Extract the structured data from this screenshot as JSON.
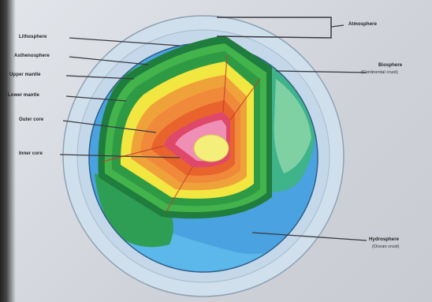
{
  "labels": {
    "left": [
      {
        "id": "lithosphere",
        "text": "Lithosphere"
      },
      {
        "id": "asthenosphere",
        "text": "Asthenosphere"
      },
      {
        "id": "upper-mantle",
        "text": "Upper mantle"
      },
      {
        "id": "lower-mantle",
        "text": "Lower mantle"
      },
      {
        "id": "outer-core",
        "text": "Outer core"
      },
      {
        "id": "inner-core",
        "text": "Inner core"
      }
    ],
    "right": [
      {
        "id": "atmosphere",
        "text": "Atmosphere",
        "sub": ""
      },
      {
        "id": "biosphere",
        "text": "Biosphere",
        "sub": "(Continental crust)"
      },
      {
        "id": "hydrosphere",
        "text": "Hydrosphere",
        "sub": "(Ocean crust)"
      }
    ]
  },
  "colors": {
    "atmosphere": "#b9d3e6",
    "ocean": "#4aa3e0",
    "land": "#3fa77a",
    "lithosphere": "#1f7d3d",
    "asthenosphere": "#43b34c",
    "upper_mantle": "#f2e640",
    "lower_mantle": "#f0a23a",
    "outer_core": "#e8642c",
    "inner_core_ring": "#e0486a",
    "inner_core": "#f4ef7a",
    "leader": "#3a3a40"
  }
}
